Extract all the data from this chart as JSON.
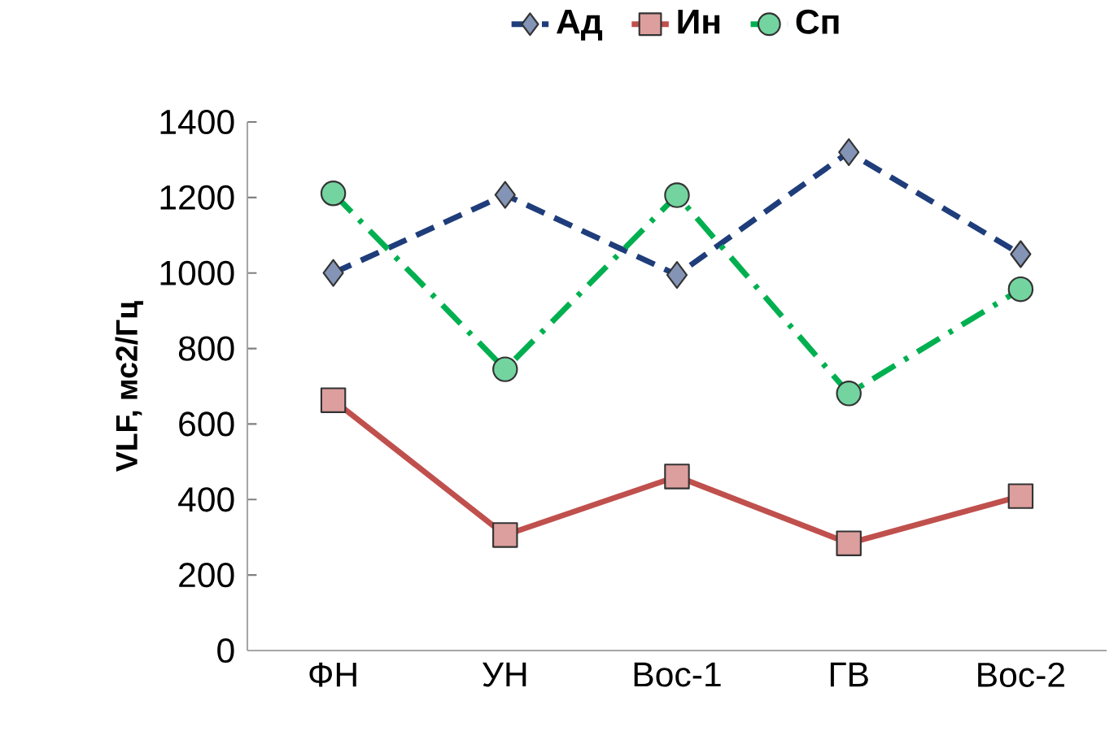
{
  "chart_data": {
    "type": "line",
    "ylabel": "VLF, мс2/Гц",
    "categories": [
      "ФН",
      "УН",
      "Вос-1",
      "ГВ",
      "Вос-2"
    ],
    "series": [
      {
        "name": "Ад",
        "color": "#1f3d7a",
        "line_style": "dashed",
        "marker": "diamond",
        "values": [
          1000,
          1207,
          995,
          1320,
          1050
        ]
      },
      {
        "name": "Ин",
        "color": "#c0504d",
        "line_style": "solid",
        "marker": "square",
        "values": [
          663,
          306,
          461,
          284,
          409
        ]
      },
      {
        "name": "Сп",
        "color": "#00b050",
        "line_style": "dotted",
        "marker": "circle",
        "values": [
          1211,
          745,
          1206,
          681,
          957
        ]
      }
    ],
    "ylim": [
      0,
      1400
    ],
    "yticks": [
      0,
      200,
      400,
      600,
      800,
      1000,
      1200,
      1400
    ],
    "grid": false,
    "legend": "top"
  }
}
